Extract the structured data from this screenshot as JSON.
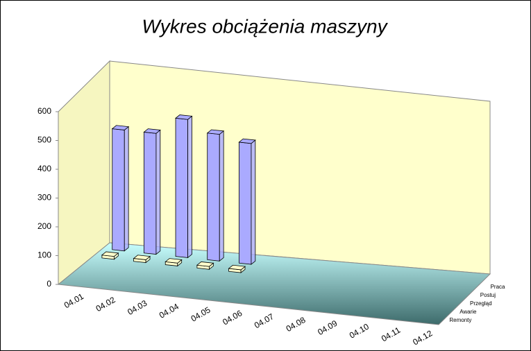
{
  "chart_data": {
    "type": "bar3d",
    "title": "Wykres obciążenia maszyny",
    "categories": [
      "04.01",
      "04.02",
      "04.03",
      "04.04",
      "04.05",
      "04.06",
      "04.07",
      "04.08",
      "04.09",
      "04.10",
      "04.11",
      "04.12"
    ],
    "series": [
      {
        "name": "Praca",
        "color": "#aaaaff",
        "values": [
          420,
          420,
          480,
          440,
          420,
          null,
          null,
          null,
          null,
          null,
          null,
          null
        ]
      },
      {
        "name": "Postuj",
        "color": "#ffffcc",
        "values": [
          10,
          10,
          10,
          10,
          10,
          null,
          null,
          null,
          null,
          null,
          null,
          null
        ]
      },
      {
        "name": "Przegląd",
        "color": "#ccffcc",
        "values": [
          null,
          null,
          null,
          null,
          null,
          null,
          null,
          null,
          null,
          null,
          null,
          null
        ]
      },
      {
        "name": "Awarie",
        "color": "#ffaaaa",
        "values": [
          null,
          null,
          null,
          null,
          null,
          null,
          null,
          null,
          null,
          null,
          null,
          null
        ]
      },
      {
        "name": "Remonty",
        "color": "#ffcc88",
        "values": [
          null,
          null,
          null,
          null,
          null,
          null,
          null,
          null,
          null,
          null,
          null,
          null
        ]
      }
    ],
    "ylim": [
      0,
      600
    ],
    "yticks": [
      0,
      100,
      200,
      300,
      400,
      500,
      600
    ]
  }
}
